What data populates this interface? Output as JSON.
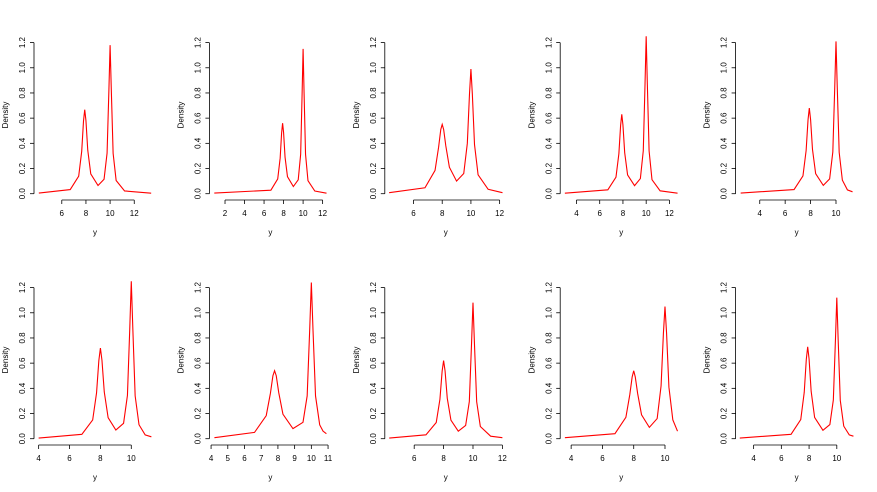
{
  "chart_data": [
    {
      "type": "line",
      "xlabel": "y",
      "ylabel": "Density",
      "color": "#ff0000",
      "x": [
        4.1,
        6.7,
        7.4,
        7.65,
        7.8,
        7.9,
        8.0,
        8.15,
        8.4,
        9,
        9.5,
        9.75,
        9.9,
        10,
        10.1,
        10.25,
        10.5,
        11.2,
        13.4
      ],
      "values": [
        0.005,
        0.033,
        0.139,
        0.337,
        0.579,
        0.667,
        0.581,
        0.346,
        0.157,
        0.065,
        0.115,
        0.323,
        0.821,
        1.18,
        0.823,
        0.321,
        0.105,
        0.022,
        0.004
      ],
      "xlim": [
        3.7,
        13.8
      ],
      "ylim": [
        -0.05,
        1.3
      ],
      "xticks": [
        6,
        8,
        10,
        12
      ],
      "yticks": [
        {
          "value": 0,
          "label": "0.0"
        },
        0.2,
        0.4,
        0.6,
        0.8,
        {
          "value": 1,
          "label": "1.0"
        },
        1.2
      ]
    },
    {
      "type": "line",
      "xlabel": "y",
      "ylabel": "Density",
      "color": "#ff0000",
      "x": [
        0.9,
        6.7,
        7.4,
        7.65,
        7.8,
        7.9,
        8.0,
        8.15,
        8.4,
        9,
        9.5,
        9.75,
        9.9,
        10,
        10.1,
        10.25,
        10.5,
        11.2,
        12.4
      ],
      "values": [
        0.005,
        0.028,
        0.117,
        0.283,
        0.484,
        0.56,
        0.486,
        0.291,
        0.135,
        0.057,
        0.11,
        0.313,
        0.798,
        1.15,
        0.802,
        0.313,
        0.103,
        0.021,
        0.004
      ],
      "xlim": [
        0.4,
        12.9
      ],
      "ylim": [
        -0.05,
        1.3
      ],
      "xticks": [
        2,
        4,
        6,
        8,
        10,
        12
      ],
      "yticks": [
        {
          "value": 0,
          "label": "0.0"
        },
        0.2,
        0.4,
        0.6,
        0.8,
        {
          "value": 1,
          "label": "1.0"
        },
        1.2
      ]
    },
    {
      "type": "line",
      "xlabel": "y",
      "ylabel": "Density",
      "color": "#ff0000",
      "x": [
        4.3,
        6.8,
        7.5,
        7.75,
        7.9,
        8,
        8.1,
        8.25,
        8.5,
        9,
        9.5,
        9.75,
        9.9,
        10,
        10.1,
        10.25,
        10.5,
        11.2,
        12.2
      ],
      "values": [
        0.008,
        0.047,
        0.185,
        0.37,
        0.51,
        0.55,
        0.51,
        0.38,
        0.21,
        0.1,
        0.16,
        0.4,
        0.79,
        0.99,
        0.79,
        0.39,
        0.15,
        0.035,
        0.008
      ],
      "xlim": [
        4.0,
        12.5
      ],
      "ylim": [
        -0.05,
        1.3
      ],
      "xticks": [
        6,
        8,
        10,
        12
      ],
      "yticks": [
        {
          "value": 0,
          "label": "0.0"
        },
        0.2,
        0.4,
        0.6,
        0.8,
        {
          "value": 1,
          "label": "1.0"
        },
        1.2
      ]
    },
    {
      "type": "line",
      "xlabel": "y",
      "ylabel": "Density",
      "color": "#ff0000",
      "x": [
        3.0,
        6.7,
        7.4,
        7.65,
        7.8,
        7.9,
        8.0,
        8.15,
        8.4,
        9,
        9.5,
        9.75,
        9.9,
        10,
        10.1,
        10.25,
        10.5,
        11.2,
        12.7
      ],
      "values": [
        0.004,
        0.031,
        0.131,
        0.318,
        0.544,
        0.63,
        0.546,
        0.326,
        0.149,
        0.064,
        0.12,
        0.341,
        0.869,
        1.25,
        0.871,
        0.34,
        0.111,
        0.023,
        0.004
      ],
      "xlim": [
        2.6,
        13.1
      ],
      "ylim": [
        -0.05,
        1.3
      ],
      "xticks": [
        4,
        6,
        8,
        10,
        12
      ],
      "yticks": [
        {
          "value": 0,
          "label": "0.0"
        },
        0.2,
        0.4,
        0.6,
        0.8,
        {
          "value": 1,
          "label": "1.0"
        },
        1.2
      ]
    },
    {
      "type": "line",
      "xlabel": "y",
      "ylabel": "Density",
      "color": "#ff0000",
      "x": [
        2.5,
        6.7,
        7.4,
        7.65,
        7.8,
        7.9,
        8.0,
        8.15,
        8.4,
        9,
        9.5,
        9.75,
        9.9,
        10,
        10.1,
        10.25,
        10.5,
        10.9,
        11.3
      ],
      "values": [
        0.005,
        0.033,
        0.141,
        0.343,
        0.588,
        0.68,
        0.59,
        0.351,
        0.159,
        0.066,
        0.118,
        0.332,
        0.842,
        1.21,
        0.843,
        0.329,
        0.108,
        0.03,
        0.015
      ],
      "xlim": [
        2.1,
        11.7
      ],
      "ylim": [
        -0.05,
        1.3
      ],
      "xticks": [
        4,
        6,
        8,
        10
      ],
      "yticks": [
        {
          "value": 0,
          "label": "0.0"
        },
        0.2,
        0.4,
        0.6,
        0.8,
        {
          "value": 1,
          "label": "1.0"
        },
        1.2
      ]
    },
    {
      "type": "line",
      "xlabel": "y",
      "ylabel": "Density",
      "color": "#ff0000",
      "x": [
        4,
        6.8,
        7.5,
        7.75,
        7.9,
        8,
        8.1,
        8.25,
        8.5,
        9,
        9.5,
        9.75,
        9.9,
        10,
        10.1,
        10.25,
        10.5,
        10.9,
        11.3
      ],
      "values": [
        0.005,
        0.035,
        0.149,
        0.363,
        0.622,
        0.72,
        0.624,
        0.371,
        0.167,
        0.069,
        0.122,
        0.343,
        0.87,
        1.25,
        0.871,
        0.34,
        0.111,
        0.03,
        0.015
      ],
      "xlim": [
        3.7,
        11.6
      ],
      "ylim": [
        -0.05,
        1.3
      ],
      "xticks": [
        4,
        6,
        8,
        10
      ],
      "yticks": [
        {
          "value": 0,
          "label": "0.0"
        },
        0.2,
        0.4,
        0.6,
        0.8,
        {
          "value": 1,
          "label": "1.0"
        },
        1.2
      ]
    },
    {
      "type": "line",
      "xlabel": "y",
      "ylabel": "Density",
      "color": "#ff0000",
      "x": [
        4.2,
        6.6,
        7.3,
        7.55,
        7.7,
        7.8,
        7.9,
        8.05,
        8.3,
        8.9,
        9.5,
        9.75,
        9.9,
        10,
        10.1,
        10.25,
        10.5,
        10.7,
        10.9
      ],
      "values": [
        0.008,
        0.05,
        0.183,
        0.36,
        0.5,
        0.54,
        0.5,
        0.365,
        0.195,
        0.08,
        0.13,
        0.34,
        0.86,
        1.24,
        0.86,
        0.34,
        0.11,
        0.06,
        0.04
      ],
      "xlim": [
        3.9,
        11.2
      ],
      "ylim": [
        -0.05,
        1.3
      ],
      "xticks": [
        4,
        5,
        6,
        7,
        8,
        9,
        10,
        11
      ],
      "yticks": [
        {
          "value": 0,
          "label": "0.0"
        },
        0.2,
        0.4,
        0.6,
        0.8,
        {
          "value": 1,
          "label": "1.0"
        },
        1.2
      ]
    },
    {
      "type": "line",
      "xlabel": "y",
      "ylabel": "Density",
      "color": "#ff0000",
      "x": [
        4.3,
        6.8,
        7.5,
        7.75,
        7.9,
        8,
        8.1,
        8.25,
        8.5,
        9,
        9.5,
        9.75,
        9.9,
        10,
        10.1,
        10.25,
        10.5,
        11.2,
        12
      ],
      "values": [
        0.005,
        0.031,
        0.129,
        0.313,
        0.536,
        0.62,
        0.538,
        0.321,
        0.147,
        0.06,
        0.105,
        0.295,
        0.751,
        1.08,
        0.753,
        0.294,
        0.097,
        0.02,
        0.008
      ],
      "xlim": [
        4.0,
        12.3
      ],
      "ylim": [
        -0.05,
        1.3
      ],
      "xticks": [
        6,
        8,
        10,
        12
      ],
      "yticks": [
        {
          "value": 0,
          "label": "0.0"
        },
        0.2,
        0.4,
        0.6,
        0.8,
        {
          "value": 1,
          "label": "1.0"
        },
        1.2
      ]
    },
    {
      "type": "line",
      "xlabel": "y",
      "ylabel": "Density",
      "color": "#ff0000",
      "x": [
        3.6,
        6.8,
        7.5,
        7.75,
        7.9,
        8,
        8.1,
        8.25,
        8.5,
        9,
        9.5,
        9.75,
        9.9,
        10,
        10.1,
        10.25,
        10.5,
        10.8
      ],
      "values": [
        0.008,
        0.04,
        0.17,
        0.35,
        0.49,
        0.54,
        0.49,
        0.36,
        0.19,
        0.09,
        0.16,
        0.42,
        0.84,
        1.05,
        0.84,
        0.41,
        0.15,
        0.06
      ],
      "xlim": [
        3.3,
        11.1
      ],
      "ylim": [
        -0.05,
        1.3
      ],
      "xticks": [
        4,
        6,
        8,
        10
      ],
      "yticks": [
        {
          "value": 0,
          "label": "0.0"
        },
        0.2,
        0.4,
        0.6,
        0.8,
        {
          "value": 1,
          "label": "1.0"
        },
        1.2
      ]
    },
    {
      "type": "line",
      "xlabel": "y",
      "ylabel": "Density",
      "color": "#ff0000",
      "x": [
        3,
        6.7,
        7.4,
        7.65,
        7.8,
        7.9,
        8.0,
        8.15,
        8.4,
        9,
        9.5,
        9.75,
        9.9,
        10,
        10.1,
        10.25,
        10.5,
        10.9,
        11.2
      ],
      "values": [
        0.005,
        0.035,
        0.152,
        0.368,
        0.63,
        0.73,
        0.633,
        0.376,
        0.169,
        0.067,
        0.112,
        0.308,
        0.78,
        1.12,
        0.781,
        0.305,
        0.1,
        0.03,
        0.02
      ],
      "xlim": [
        2.7,
        11.5
      ],
      "ylim": [
        -0.05,
        1.3
      ],
      "xticks": [
        4,
        6,
        8,
        10
      ],
      "yticks": [
        {
          "value": 0,
          "label": "0.0"
        },
        0.2,
        0.4,
        0.6,
        0.8,
        {
          "value": 1,
          "label": "1.0"
        },
        1.2
      ]
    }
  ]
}
